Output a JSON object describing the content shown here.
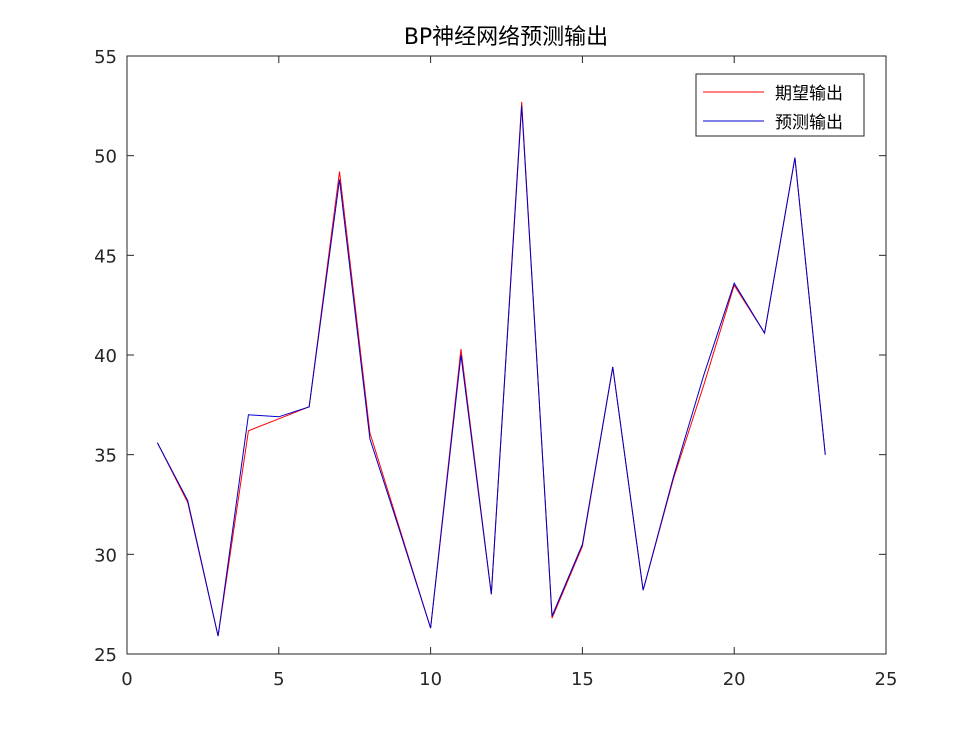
{
  "chart_data": {
    "type": "line",
    "title": "BP神经网络预测输出",
    "xlabel": "",
    "ylabel": "",
    "xlim": [
      0,
      25
    ],
    "ylim": [
      25,
      55
    ],
    "xticks": [
      0,
      5,
      10,
      15,
      20,
      25
    ],
    "yticks": [
      25,
      30,
      35,
      40,
      45,
      50,
      55
    ],
    "grid": false,
    "legend_position": "top-right",
    "x": [
      1,
      2,
      3,
      4,
      5,
      6,
      7,
      8,
      9,
      10,
      11,
      12,
      13,
      14,
      15,
      16,
      17,
      18,
      19,
      20,
      21,
      22,
      23
    ],
    "series": [
      {
        "name": "期望输出",
        "color": "#ff0000",
        "values": [
          35.6,
          32.6,
          25.9,
          36.2,
          36.8,
          37.4,
          49.2,
          36.1,
          31.2,
          26.3,
          40.3,
          28.0,
          52.7,
          26.8,
          30.4,
          39.4,
          28.2,
          33.8,
          38.5,
          43.5,
          41.1,
          49.9,
          35.0
        ]
      },
      {
        "name": "预测输出",
        "color": "#0000cc",
        "values": [
          35.6,
          32.7,
          25.9,
          37.0,
          36.9,
          37.4,
          48.8,
          35.8,
          31.1,
          26.3,
          40.0,
          28.0,
          52.5,
          26.9,
          30.5,
          39.4,
          28.2,
          33.9,
          39.0,
          43.6,
          41.1,
          49.9,
          35.0
        ]
      }
    ]
  }
}
